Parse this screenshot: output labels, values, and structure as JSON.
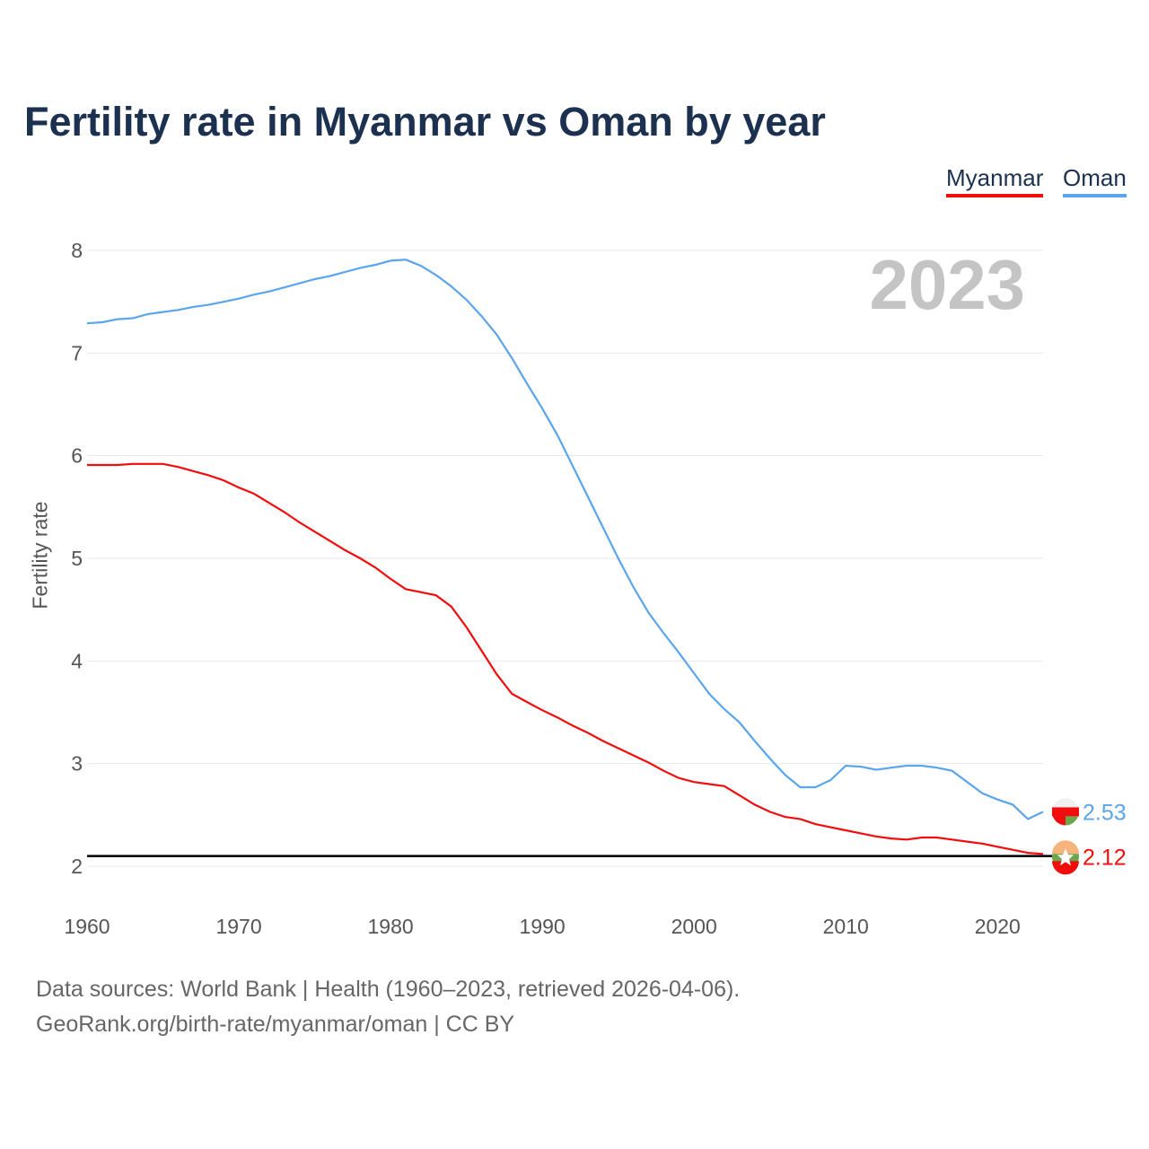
{
  "chart_data": {
    "type": "line",
    "title": "Fertility rate in Myanmar vs Oman by year",
    "ylabel": "Fertility rate",
    "xlabel": "",
    "current_year": "2023",
    "xlim": [
      1960,
      2023
    ],
    "ylim": [
      2,
      8
    ],
    "yticks": [
      2,
      3,
      4,
      5,
      6,
      7,
      8
    ],
    "xticks": [
      1960,
      1970,
      1980,
      1990,
      2000,
      2010,
      2020
    ],
    "grid": true,
    "legend_position": "top-right",
    "reference_line": 2.1,
    "x": [
      1960,
      1961,
      1962,
      1963,
      1964,
      1965,
      1966,
      1967,
      1968,
      1969,
      1970,
      1971,
      1972,
      1973,
      1974,
      1975,
      1976,
      1977,
      1978,
      1979,
      1980,
      1981,
      1982,
      1983,
      1984,
      1985,
      1986,
      1987,
      1988,
      1989,
      1990,
      1991,
      1992,
      1993,
      1994,
      1995,
      1996,
      1997,
      1998,
      1999,
      2000,
      2001,
      2002,
      2003,
      2004,
      2005,
      2006,
      2007,
      2008,
      2009,
      2010,
      2011,
      2012,
      2013,
      2014,
      2015,
      2016,
      2017,
      2018,
      2019,
      2020,
      2021,
      2022,
      2023
    ],
    "series": [
      {
        "name": "Myanmar",
        "color": "#f20d0d",
        "end_label": "2.12",
        "values": [
          5.91,
          5.91,
          5.91,
          5.92,
          5.92,
          5.92,
          5.89,
          5.85,
          5.81,
          5.76,
          5.69,
          5.63,
          5.54,
          5.45,
          5.35,
          5.26,
          5.17,
          5.08,
          5.0,
          4.91,
          4.8,
          4.7,
          4.67,
          4.64,
          4.53,
          4.33,
          4.1,
          3.87,
          3.68,
          3.6,
          3.52,
          3.45,
          3.37,
          3.3,
          3.22,
          3.15,
          3.08,
          3.01,
          2.93,
          2.86,
          2.82,
          2.8,
          2.78,
          2.69,
          2.6,
          2.53,
          2.48,
          2.46,
          2.41,
          2.38,
          2.35,
          2.32,
          2.29,
          2.27,
          2.26,
          2.28,
          2.28,
          2.26,
          2.24,
          2.22,
          2.19,
          2.16,
          2.13,
          2.12
        ]
      },
      {
        "name": "Oman",
        "color": "#5aa5eb",
        "end_label": "2.53",
        "values": [
          7.29,
          7.3,
          7.33,
          7.34,
          7.38,
          7.4,
          7.42,
          7.45,
          7.47,
          7.5,
          7.53,
          7.57,
          7.6,
          7.64,
          7.68,
          7.72,
          7.75,
          7.79,
          7.83,
          7.86,
          7.9,
          7.91,
          7.85,
          7.76,
          7.65,
          7.52,
          7.36,
          7.18,
          6.95,
          6.7,
          6.46,
          6.2,
          5.9,
          5.6,
          5.3,
          5.0,
          4.72,
          4.47,
          4.27,
          4.08,
          3.88,
          3.68,
          3.53,
          3.4,
          3.22,
          3.05,
          2.89,
          2.77,
          2.77,
          2.84,
          2.98,
          2.97,
          2.94,
          2.96,
          2.98,
          2.98,
          2.96,
          2.93,
          2.82,
          2.71,
          2.65,
          2.6,
          2.46,
          2.53
        ]
      }
    ]
  },
  "footer": {
    "source": "Data sources: World Bank | Health (1960–2023, retrieved 2026-04-06).",
    "credit": "GeoRank.org/birth-rate/myanmar/oman | CC BY"
  }
}
